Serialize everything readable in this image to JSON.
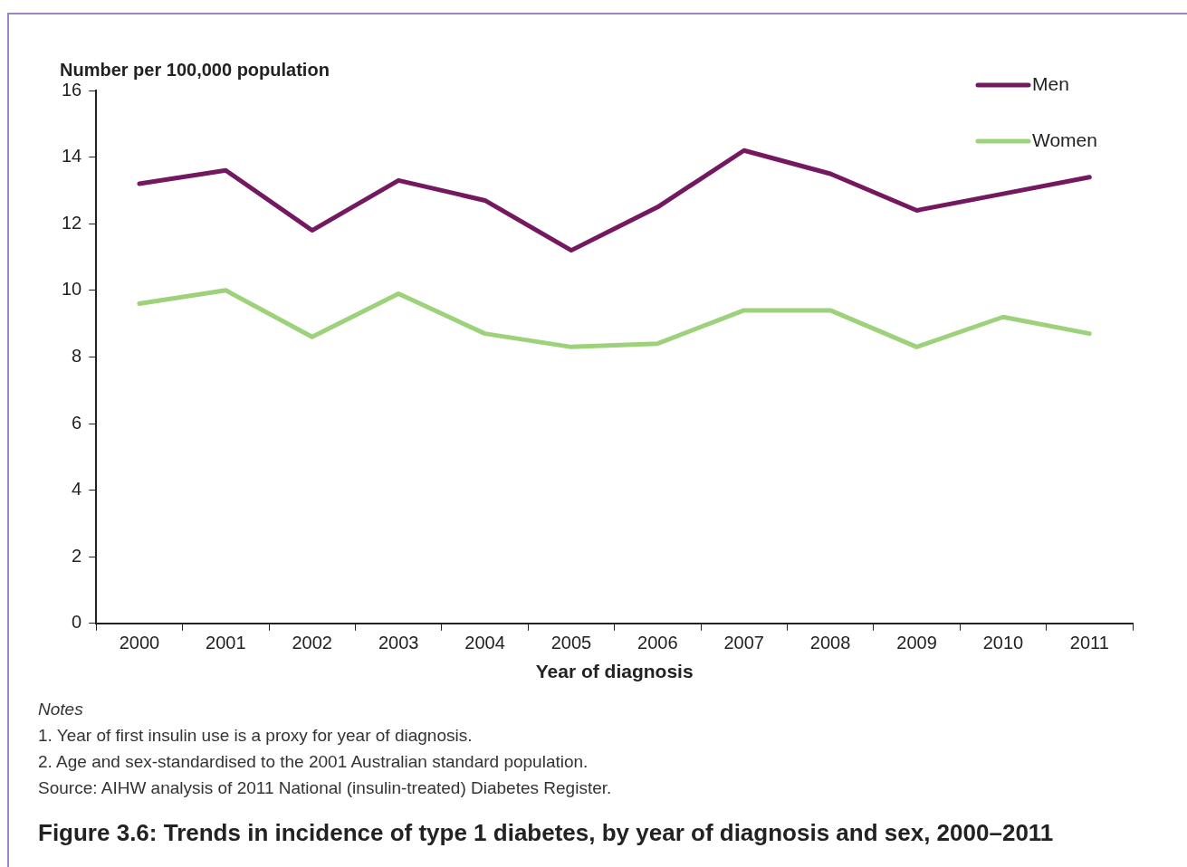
{
  "chart_data": {
    "type": "line",
    "title": "Figure 3.6: Trends in incidence of type 1 diabetes, by year of diagnosis and sex, 2000–2011",
    "xlabel": "Year of diagnosis",
    "ylabel": "Number per 100,000 population",
    "categories": [
      "2000",
      "2001",
      "2002",
      "2003",
      "2004",
      "2005",
      "2006",
      "2007",
      "2008",
      "2009",
      "2010",
      "2011"
    ],
    "series": [
      {
        "name": "Men",
        "color": "#74195f",
        "values": [
          13.2,
          13.6,
          11.8,
          13.3,
          12.7,
          11.2,
          12.5,
          14.2,
          13.5,
          12.4,
          12.9,
          13.4
        ]
      },
      {
        "name": "Women",
        "color": "#9dd27a",
        "values": [
          9.6,
          10.0,
          8.6,
          9.9,
          8.7,
          8.3,
          8.4,
          9.4,
          9.4,
          8.3,
          9.2,
          8.7
        ]
      }
    ],
    "ylim": [
      0,
      16
    ],
    "yticks": [
      0,
      2,
      4,
      6,
      8,
      10,
      12,
      14,
      16
    ],
    "grid": false,
    "legend": "top right",
    "marker": "none",
    "line_style": "solid",
    "annotations": [
      "Notes",
      "1.   Year of first insulin use is a proxy for year of diagnosis.",
      "2.   Age and sex-standardised to the 2001 Australian standard population.",
      "Source: AIHW analysis of 2011 National (insulin-treated) Diabetes Register."
    ]
  }
}
